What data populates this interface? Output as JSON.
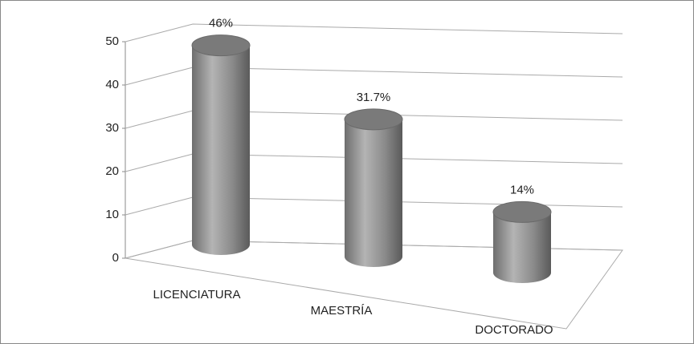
{
  "chart_data": {
    "type": "bar3d",
    "categories": [
      "LICENCIATURA",
      "MAESTRÍA",
      "DOCTORADO"
    ],
    "values": [
      46,
      31.7,
      14
    ],
    "value_labels": [
      "46%",
      "31.7%",
      "14%"
    ],
    "color": "#8c8c8c",
    "ylim": [
      0,
      50
    ],
    "yticks": [
      0,
      10,
      20,
      30,
      40,
      50
    ],
    "grid": true
  }
}
